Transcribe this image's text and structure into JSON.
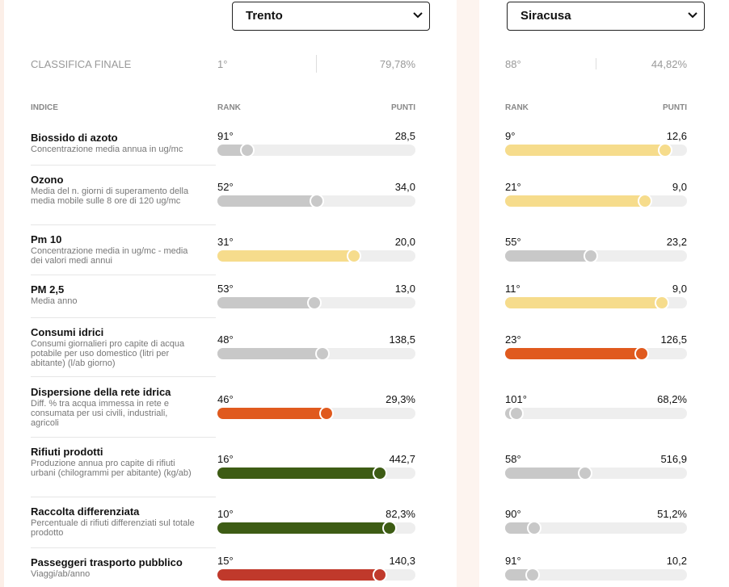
{
  "selects": [
    "Trento",
    "Siracusa"
  ],
  "final": {
    "label": "CLASSIFICA FINALE",
    "cities": [
      {
        "rank": "1°",
        "score": "79,78%"
      },
      {
        "rank": "88°",
        "score": "44,82%"
      }
    ]
  },
  "headers": {
    "index": "INDICE",
    "rank": "RANK",
    "points": "PUNTI"
  },
  "rows": [
    {
      "name": "Biossido di azoto",
      "desc": "Concentrazione media annua in ug/mc",
      "cells": [
        {
          "rank": "91°",
          "points": "28,5",
          "fill": 15,
          "color": "#c8c8c8"
        },
        {
          "rank": "9°",
          "points": "12,6",
          "fill": 88,
          "color": "#f6dc8c"
        }
      ]
    },
    {
      "name": "Ozono",
      "desc": "Media del n. giorni di superamento della media mobile sulle 8 ore di 120 ug/mc",
      "cells": [
        {
          "rank": "52°",
          "points": "34,0",
          "fill": 50,
          "color": "#c8c8c8"
        },
        {
          "rank": "21°",
          "points": "9,0",
          "fill": 77,
          "color": "#f6dc8c"
        }
      ]
    },
    {
      "name": "Pm 10",
      "desc": "Concentrazione media in ug/mc - media dei valori medi annui",
      "cells": [
        {
          "rank": "31°",
          "points": "20,0",
          "fill": 69,
          "color": "#f6dc8c"
        },
        {
          "rank": "55°",
          "points": "23,2",
          "fill": 47,
          "color": "#c8c8c8"
        }
      ]
    },
    {
      "name": "PM 2,5",
      "desc": "Media anno",
      "cells": [
        {
          "rank": "53°",
          "points": "13,0",
          "fill": 49,
          "color": "#c8c8c8"
        },
        {
          "rank": "11°",
          "points": "9,0",
          "fill": 86,
          "color": "#f6dc8c"
        }
      ]
    },
    {
      "name": "Consumi idrici",
      "desc": "Consumi giornalieri pro capite di acqua potabile per uso domestico (litri per abitante) (l/ab giorno)",
      "cells": [
        {
          "rank": "48°",
          "points": "138,5",
          "fill": 53,
          "color": "#c8c8c8"
        },
        {
          "rank": "23°",
          "points": "126,5",
          "fill": 75,
          "color": "#e05a1e"
        }
      ]
    },
    {
      "name": "Dispersione della rete idrica",
      "desc": "Diff. % tra acqua immessa in rete e consumata per usi civili, industriali, agricoli",
      "cells": [
        {
          "rank": "46°",
          "points": "29,3%",
          "fill": 55,
          "color": "#e05a1e"
        },
        {
          "rank": "101°",
          "points": "68,2%",
          "fill": 6,
          "color": "#c8c8c8"
        }
      ]
    },
    {
      "name": "Rifiuti prodotti",
      "desc": "Produzione annua pro capite di rifiuti urbani (chilogrammi per abitante) (kg/ab)",
      "cells": [
        {
          "rank": "16°",
          "points": "442,7",
          "fill": 82,
          "color": "#3d5c14"
        },
        {
          "rank": "58°",
          "points": "516,9",
          "fill": 44,
          "color": "#c8c8c8"
        }
      ]
    },
    {
      "name": "Raccolta differenziata",
      "desc": "Percentuale di rifiuti differenziati sul totale prodotto",
      "cells": [
        {
          "rank": "10°",
          "points": "82,3%",
          "fill": 87,
          "color": "#3d5c14"
        },
        {
          "rank": "90°",
          "points": "51,2%",
          "fill": 16,
          "color": "#c8c8c8"
        }
      ]
    },
    {
      "name": "Passeggeri trasporto pubblico",
      "desc": "Viaggi/ab/anno",
      "cells": [
        {
          "rank": "15°",
          "points": "140,3",
          "fill": 82,
          "color": "#c0392b"
        },
        {
          "rank": "91°",
          "points": "10,2",
          "fill": 15,
          "color": "#c8c8c8"
        }
      ]
    }
  ]
}
